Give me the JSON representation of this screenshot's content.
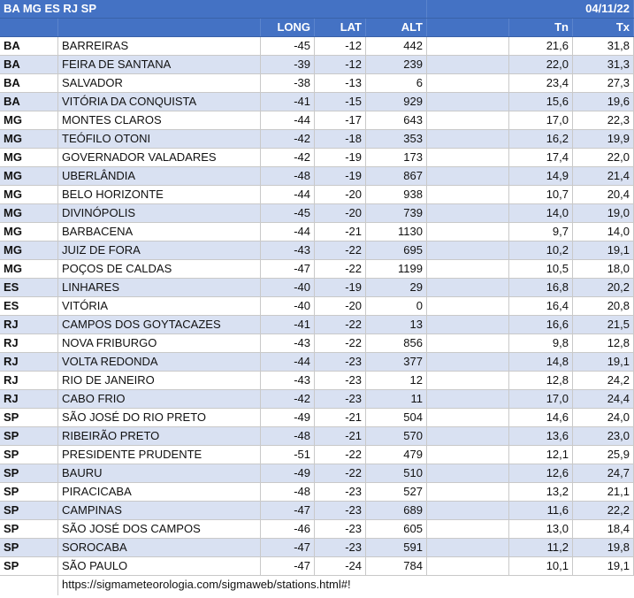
{
  "header": {
    "title": "BA MG ES RJ SP",
    "date": "04/11/22",
    "columns": {
      "long": "LONG",
      "lat": "LAT",
      "alt": "ALT",
      "tn": "Tn",
      "tx": "Tx"
    }
  },
  "rows": [
    {
      "uf": "BA",
      "city": "BARREIRAS",
      "long": "-45",
      "lat": "-12",
      "alt": "442",
      "tn": "21,6",
      "tx": "31,8"
    },
    {
      "uf": "BA",
      "city": "FEIRA DE SANTANA",
      "long": "-39",
      "lat": "-12",
      "alt": "239",
      "tn": "22,0",
      "tx": "31,3"
    },
    {
      "uf": "BA",
      "city": "SALVADOR",
      "long": "-38",
      "lat": "-13",
      "alt": "6",
      "tn": "23,4",
      "tx": "27,3"
    },
    {
      "uf": "BA",
      "city": "VITÓRIA DA CONQUISTA",
      "long": "-41",
      "lat": "-15",
      "alt": "929",
      "tn": "15,6",
      "tx": "19,6"
    },
    {
      "uf": "MG",
      "city": "MONTES CLAROS",
      "long": "-44",
      "lat": "-17",
      "alt": "643",
      "tn": "17,0",
      "tx": "22,3"
    },
    {
      "uf": "MG",
      "city": "TEÓFILO OTONI",
      "long": "-42",
      "lat": "-18",
      "alt": "353",
      "tn": "16,2",
      "tx": "19,9"
    },
    {
      "uf": "MG",
      "city": "GOVERNADOR VALADARES",
      "long": "-42",
      "lat": "-19",
      "alt": "173",
      "tn": "17,4",
      "tx": "22,0"
    },
    {
      "uf": "MG",
      "city": "UBERLÂNDIA",
      "long": "-48",
      "lat": "-19",
      "alt": "867",
      "tn": "14,9",
      "tx": "21,4"
    },
    {
      "uf": "MG",
      "city": "BELO HORIZONTE",
      "long": "-44",
      "lat": "-20",
      "alt": "938",
      "tn": "10,7",
      "tx": "20,4"
    },
    {
      "uf": "MG",
      "city": "DIVINÓPOLIS",
      "long": "-45",
      "lat": "-20",
      "alt": "739",
      "tn": "14,0",
      "tx": "19,0"
    },
    {
      "uf": "MG",
      "city": "BARBACENA",
      "long": "-44",
      "lat": "-21",
      "alt": "1130",
      "tn": "9,7",
      "tx": "14,0"
    },
    {
      "uf": "MG",
      "city": "JUIZ DE FORA",
      "long": "-43",
      "lat": "-22",
      "alt": "695",
      "tn": "10,2",
      "tx": "19,1"
    },
    {
      "uf": "MG",
      "city": "POÇOS DE CALDAS",
      "long": "-47",
      "lat": "-22",
      "alt": "1199",
      "tn": "10,5",
      "tx": "18,0"
    },
    {
      "uf": "ES",
      "city": "LINHARES",
      "long": "-40",
      "lat": "-19",
      "alt": "29",
      "tn": "16,8",
      "tx": "20,2"
    },
    {
      "uf": "ES",
      "city": "VITÓRIA",
      "long": "-40",
      "lat": "-20",
      "alt": "0",
      "tn": "16,4",
      "tx": "20,8"
    },
    {
      "uf": "RJ",
      "city": "CAMPOS DOS GOYTACAZES",
      "long": "-41",
      "lat": "-22",
      "alt": "13",
      "tn": "16,6",
      "tx": "21,5"
    },
    {
      "uf": "RJ",
      "city": "NOVA FRIBURGO",
      "long": "-43",
      "lat": "-22",
      "alt": "856",
      "tn": "9,8",
      "tx": "12,8"
    },
    {
      "uf": "RJ",
      "city": "VOLTA REDONDA",
      "long": "-44",
      "lat": "-23",
      "alt": "377",
      "tn": "14,8",
      "tx": "19,1"
    },
    {
      "uf": "RJ",
      "city": "RIO DE JANEIRO",
      "long": "-43",
      "lat": "-23",
      "alt": "12",
      "tn": "12,8",
      "tx": "24,2"
    },
    {
      "uf": "RJ",
      "city": "CABO FRIO",
      "long": "-42",
      "lat": "-23",
      "alt": "11",
      "tn": "17,0",
      "tx": "24,4"
    },
    {
      "uf": "SP",
      "city": "SÃO JOSÉ DO RIO PRETO",
      "long": "-49",
      "lat": "-21",
      "alt": "504",
      "tn": "14,6",
      "tx": "24,0"
    },
    {
      "uf": "SP",
      "city": "RIBEIRÃO PRETO",
      "long": "-48",
      "lat": "-21",
      "alt": "570",
      "tn": "13,6",
      "tx": "23,0"
    },
    {
      "uf": "SP",
      "city": "PRESIDENTE PRUDENTE",
      "long": "-51",
      "lat": "-22",
      "alt": "479",
      "tn": "12,1",
      "tx": "25,9"
    },
    {
      "uf": "SP",
      "city": "BAURU",
      "long": "-49",
      "lat": "-22",
      "alt": "510",
      "tn": "12,6",
      "tx": "24,7"
    },
    {
      "uf": "SP",
      "city": "PIRACICABA",
      "long": "-48",
      "lat": "-23",
      "alt": "527",
      "tn": "13,2",
      "tx": "21,1"
    },
    {
      "uf": "SP",
      "city": "CAMPINAS",
      "long": "-47",
      "lat": "-23",
      "alt": "689",
      "tn": "11,6",
      "tx": "22,2"
    },
    {
      "uf": "SP",
      "city": "SÃO JOSÉ DOS CAMPOS",
      "long": "-46",
      "lat": "-23",
      "alt": "605",
      "tn": "13,0",
      "tx": "18,4"
    },
    {
      "uf": "SP",
      "city": "SOROCABA",
      "long": "-47",
      "lat": "-23",
      "alt": "591",
      "tn": "11,2",
      "tx": "19,8"
    },
    {
      "uf": "SP",
      "city": "SÃO PAULO",
      "long": "-47",
      "lat": "-24",
      "alt": "784",
      "tn": "10,1",
      "tx": "19,1"
    }
  ],
  "footer": {
    "url": "https://sigmameteorologia.com/sigmaweb/stations.html#!"
  },
  "colors": {
    "header_bg": "#4472c4",
    "band_bg": "#d9e1f2",
    "header_text": "#ffffff"
  }
}
